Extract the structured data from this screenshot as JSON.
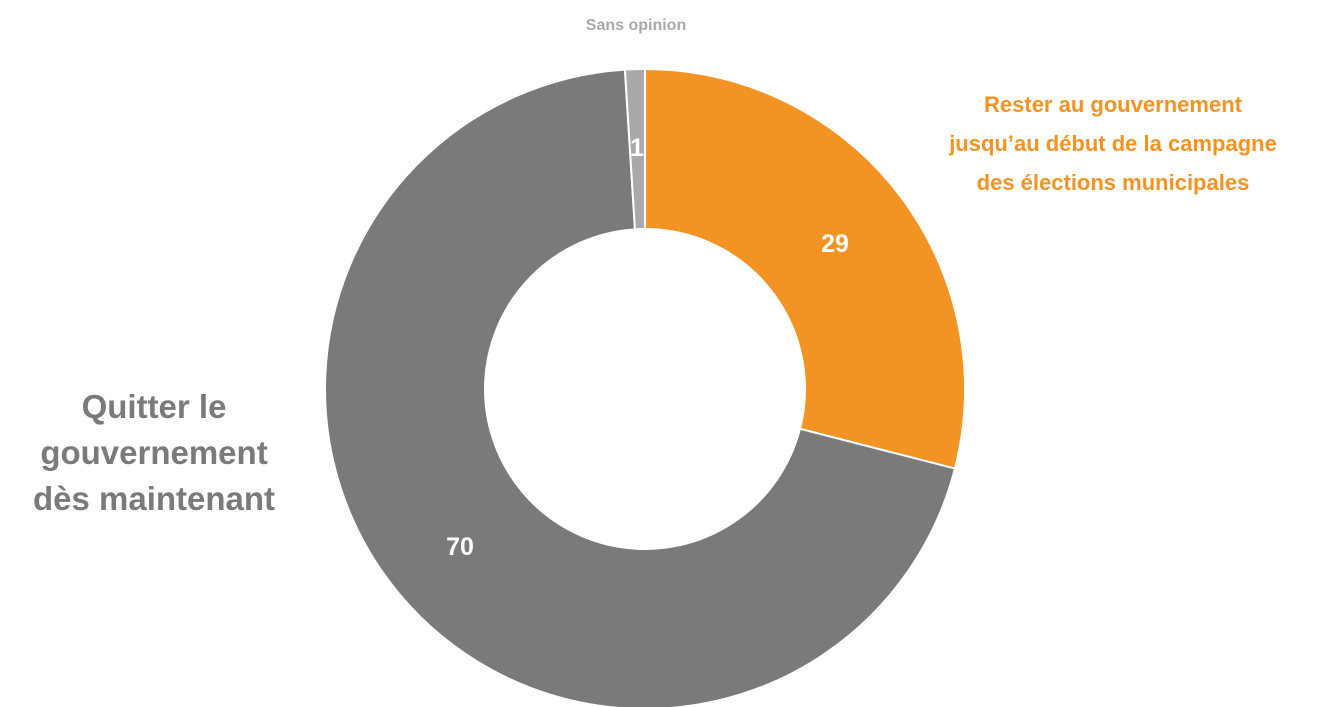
{
  "chart_data": {
    "type": "pie",
    "donut": true,
    "start_angle_deg": 0,
    "direction": "clockwise",
    "slices": [
      {
        "label": "Rester au gouvernement jusqu’au début de la campagne des élections municipales",
        "value": 29,
        "color": "#f39323",
        "label_color": "#f39323",
        "data_label": "29"
      },
      {
        "label": "Quitter le gouvernement dès maintenant",
        "value": 70,
        "color": "#7a7a7c",
        "label_color": "#7a7a7c",
        "data_label": "70"
      },
      {
        "label": "Sans opinion",
        "value": 1,
        "color": "#a9a9a9",
        "label_color": "#a9a9a9",
        "data_label": "1"
      }
    ],
    "category_labels": {
      "rester": [
        "Rester au gouvernement",
        "jusqu’au début de la campagne",
        "des élections municipales"
      ],
      "quitter": [
        "Quitter le",
        "gouvernement",
        "dès maintenant"
      ],
      "sans_opinion": [
        "Sans opinion"
      ]
    },
    "legend": "none"
  }
}
